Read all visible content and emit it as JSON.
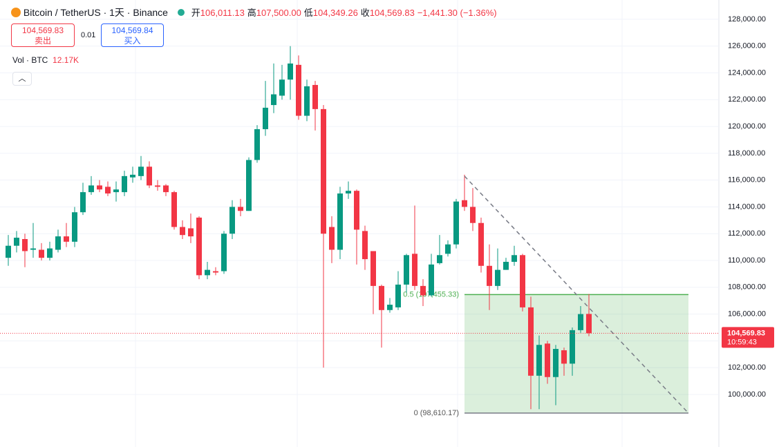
{
  "chart_data": {
    "type": "candlestick",
    "title": "Bitcoin / TetherUS · 1天 · Binance",
    "header": {
      "open_label": "开",
      "open": "106,011.13",
      "high_label": "高",
      "high": "107,500.00",
      "low_label": "低",
      "low": "104,349.26",
      "close_label": "收",
      "close": "104,569.83",
      "change": "−1,441.30 (−1.36%)"
    },
    "sell_price": "104,569.83",
    "sell_label": "卖出",
    "quantity": "0.01",
    "buy_price": "104,569.84",
    "buy_label": "买入",
    "volume_label": "Vol · BTC",
    "volume_value": "12.17K",
    "up_color": "#089981",
    "down_color": "#f23645",
    "ohlc": [
      [
        110200,
        111900,
        109600,
        111100
      ],
      [
        111100,
        112200,
        110600,
        111700
      ],
      [
        111600,
        112000,
        109500,
        110700
      ],
      [
        110800,
        112800,
        110200,
        110900
      ],
      [
        110800,
        111300,
        110000,
        110200
      ],
      [
        110200,
        111400,
        110000,
        110900
      ],
      [
        110800,
        112300,
        110600,
        111800
      ],
      [
        111800,
        112800,
        111000,
        111400
      ],
      [
        111400,
        114000,
        111000,
        113600
      ],
      [
        113600,
        115800,
        113400,
        115100
      ],
      [
        115100,
        116300,
        114900,
        115600
      ],
      [
        115600,
        116000,
        115100,
        115300
      ],
      [
        115500,
        115900,
        114800,
        115000
      ],
      [
        115100,
        115900,
        114400,
        115300
      ],
      [
        115100,
        116700,
        114800,
        116300
      ],
      [
        116200,
        117000,
        115800,
        116400
      ],
      [
        116300,
        117800,
        116000,
        117000
      ],
      [
        117000,
        117400,
        115400,
        115600
      ],
      [
        115600,
        116000,
        115200,
        115500
      ],
      [
        115600,
        115700,
        114800,
        115100
      ],
      [
        115100,
        115200,
        112300,
        112500
      ],
      [
        112500,
        113000,
        111600,
        111900
      ],
      [
        112400,
        113500,
        111300,
        111800
      ],
      [
        113200,
        113300,
        108600,
        108900
      ],
      [
        108900,
        109900,
        108600,
        109300
      ],
      [
        109200,
        109500,
        108900,
        109100
      ],
      [
        109200,
        112200,
        109000,
        112000
      ],
      [
        112000,
        114500,
        111600,
        114000
      ],
      [
        114000,
        114600,
        113300,
        113700
      ],
      [
        113700,
        117700,
        113700,
        117500
      ],
      [
        117500,
        120100,
        117300,
        119800
      ],
      [
        119800,
        123400,
        119300,
        121400
      ],
      [
        121600,
        124700,
        121000,
        122400
      ],
      [
        122300,
        124600,
        122000,
        123500
      ],
      [
        123500,
        126000,
        122000,
        124700
      ],
      [
        124600,
        125300,
        120500,
        120800
      ],
      [
        120800,
        123500,
        120400,
        123000
      ],
      [
        123100,
        123400,
        119700,
        121300
      ],
      [
        121300,
        121600,
        102000,
        112000
      ],
      [
        112500,
        113300,
        109800,
        110800
      ],
      [
        110800,
        115500,
        110100,
        115000
      ],
      [
        115000,
        115900,
        114600,
        115200
      ],
      [
        115200,
        115300,
        109700,
        112300
      ],
      [
        112200,
        112600,
        109300,
        110100
      ],
      [
        110700,
        110700,
        106000,
        108100
      ],
      [
        108100,
        108200,
        103500,
        106300
      ],
      [
        106300,
        107200,
        106100,
        106700
      ],
      [
        106500,
        109200,
        106300,
        108200
      ],
      [
        108200,
        110500,
        107600,
        110400
      ],
      [
        110500,
        114100,
        107800,
        108100
      ],
      [
        108100,
        108600,
        106600,
        107400
      ],
      [
        107400,
        110500,
        107300,
        109700
      ],
      [
        109800,
        111900,
        109700,
        110400
      ],
      [
        110500,
        111500,
        110300,
        111200
      ],
      [
        111200,
        114600,
        110900,
        114400
      ],
      [
        114500,
        116400,
        113700,
        114000
      ],
      [
        114000,
        115400,
        112200,
        112800
      ],
      [
        112800,
        113200,
        109100,
        109600
      ],
      [
        109600,
        111200,
        106300,
        108100
      ],
      [
        108100,
        110900,
        107800,
        109300
      ],
      [
        109300,
        110200,
        109300,
        109900
      ],
      [
        109900,
        111100,
        109600,
        110400
      ],
      [
        110400,
        110500,
        106200,
        106500
      ],
      [
        106500,
        107300,
        98900,
        101400
      ],
      [
        101400,
        104400,
        98900,
        103700
      ],
      [
        103800,
        104000,
        100800,
        101300
      ],
      [
        101300,
        103700,
        99200,
        103400
      ],
      [
        103300,
        103500,
        101400,
        102300
      ],
      [
        102300,
        105000,
        101400,
        104800
      ],
      [
        104800,
        106600,
        104600,
        106000
      ],
      [
        106011.13,
        107500,
        104349.26,
        104569.83
      ]
    ],
    "ylim": [
      96080,
      129440
    ],
    "yticks": [
      {
        "value": 100000,
        "label": "100,000.00"
      },
      {
        "value": 102000,
        "label": "102,000.00"
      },
      {
        "value": 104000,
        "label": "104,000.00"
      },
      {
        "value": 106000,
        "label": "106,000.00"
      },
      {
        "value": 108000,
        "label": "108,000.00"
      },
      {
        "value": 110000,
        "label": "110,000.00"
      },
      {
        "value": 112000,
        "label": "112,000.00"
      },
      {
        "value": 114000,
        "label": "114,000.00"
      },
      {
        "value": 116000,
        "label": "116,000.00"
      },
      {
        "value": 118000,
        "label": "118,000.00"
      },
      {
        "value": 120000,
        "label": "120,000.00"
      },
      {
        "value": 122000,
        "label": "122,000.00"
      },
      {
        "value": 124000,
        "label": "124,000.00"
      },
      {
        "value": 126000,
        "label": "126,000.00"
      },
      {
        "value": 128000,
        "label": "128,000.00"
      }
    ],
    "grid": true,
    "last_price": {
      "value": 104569.83,
      "label": "104,569.83",
      "countdown": "10:59:43"
    },
    "fib": {
      "start_index": 55,
      "end_index": 82,
      "color": "#4caf50",
      "levels": [
        {
          "value": 107455.33,
          "label": "0.5 (107,455.33)"
        },
        {
          "value": 98610.17,
          "label": "0 (98,610.17)"
        }
      ]
    },
    "trendline": {
      "start": {
        "x": 55,
        "y": 116300
      },
      "end": {
        "x": 82,
        "y": 98610.17
      }
    }
  }
}
